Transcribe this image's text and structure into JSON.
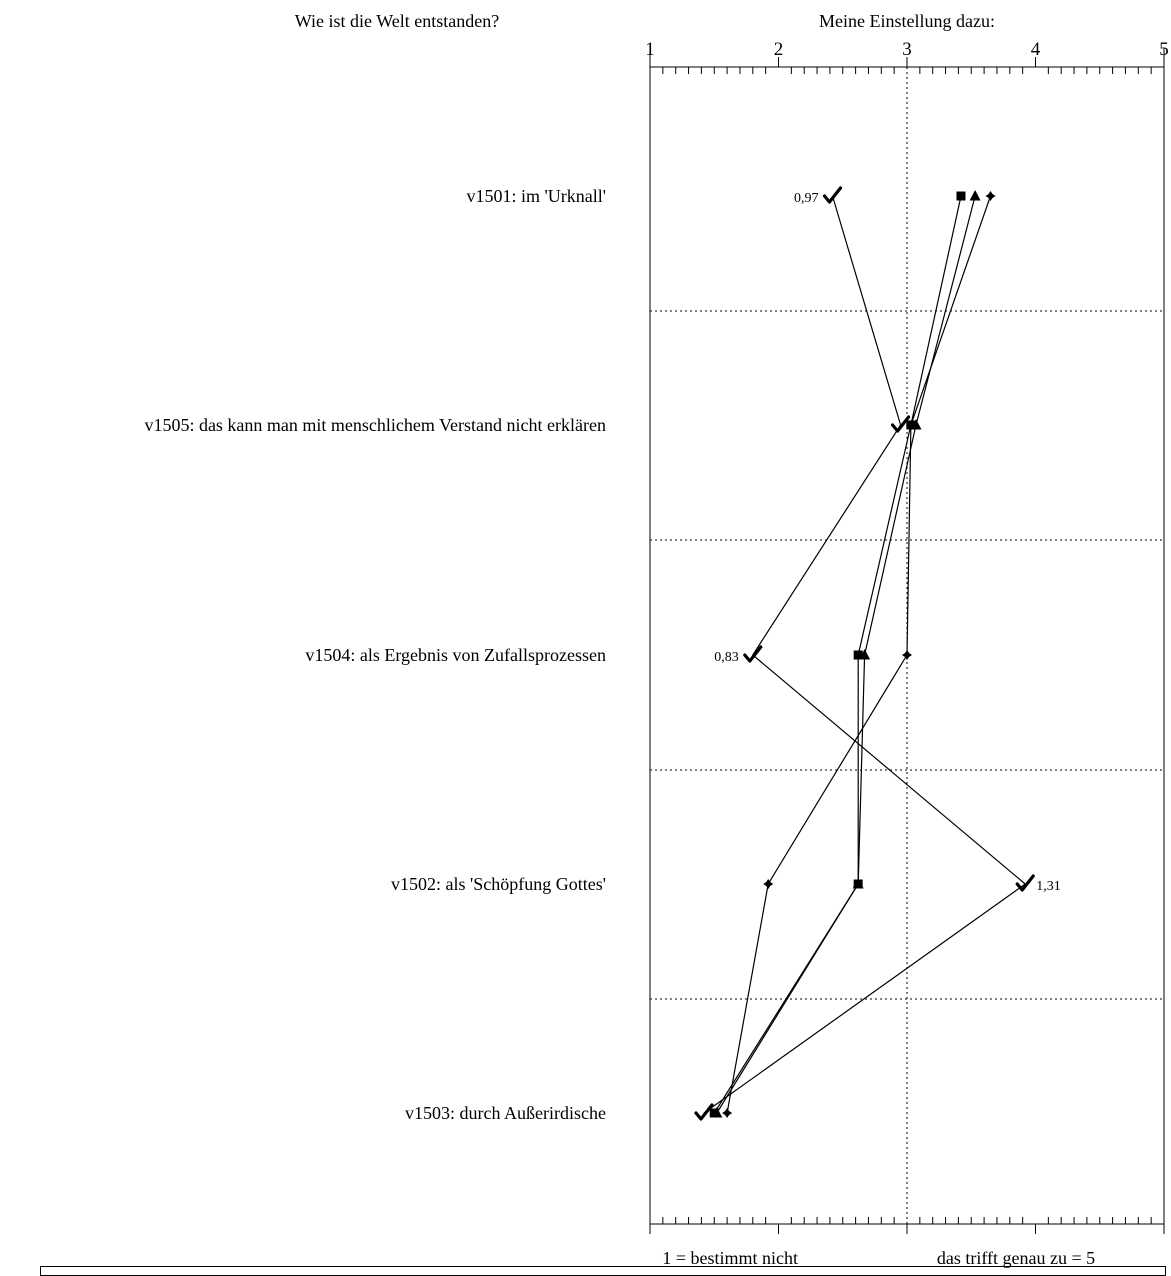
{
  "question": "Wie ist die Welt entstanden?",
  "axis_title": "Meine Einstellung dazu:",
  "bottom_left": "1 = bestimmt nicht",
  "bottom_right": "das trifft genau zu = 5",
  "chart_data": {
    "type": "line",
    "orientation": "horizontal-profile",
    "xlim": [
      1,
      5
    ],
    "xticks": [
      "1",
      "2",
      "3",
      "4",
      "5"
    ],
    "categories": [
      "v1501: im 'Urknall'",
      "v1505: das kann man mit menschlichem Verstand nicht erklären",
      "v1504: als Ergebnis von Zufallsprozessen",
      "v1502: als 'Schöpfung Gottes'",
      "v1503: durch Außerirdische"
    ],
    "grid": "dotted",
    "series": [
      {
        "marker": "square",
        "values": [
          3.42,
          3.03,
          2.62,
          2.62,
          1.5
        ]
      },
      {
        "marker": "triangle",
        "values": [
          3.53,
          3.07,
          2.67,
          2.62,
          1.52
        ]
      },
      {
        "marker": "diamond",
        "values": [
          3.65,
          3.03,
          3.0,
          1.92,
          1.6
        ]
      },
      {
        "marker": "check",
        "values": [
          2.42,
          2.95,
          1.8,
          3.92,
          1.42
        ],
        "labels": [
          "0,97",
          "",
          "0,83",
          "1,31",
          ""
        ]
      }
    ]
  }
}
